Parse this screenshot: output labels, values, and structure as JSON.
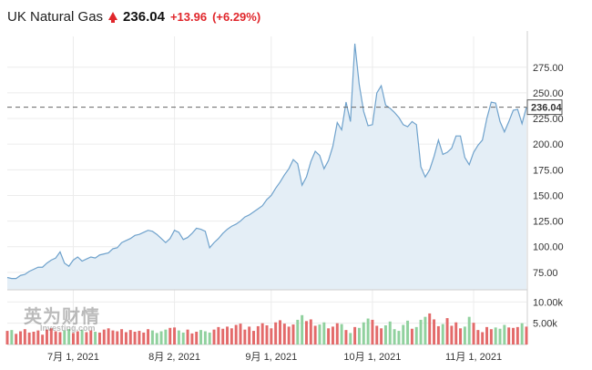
{
  "header": {
    "title": "UK Natural Gas",
    "price": "236.04",
    "change": "+13.96",
    "change_pct": "(+6.29%)",
    "up_color": "#e0262b"
  },
  "watermark": {
    "cn": "英为财情",
    "en": "Investing.com"
  },
  "chart_data": {
    "type": "area",
    "last_price_label": "236.04",
    "last_price": 236.04,
    "y_ticks": [
      "275.00",
      "250.00",
      "225.00",
      "200.00",
      "175.00",
      "150.00",
      "125.00",
      "100.00",
      "75.00"
    ],
    "y_tick_values": [
      275,
      250,
      225,
      200,
      175,
      150,
      125,
      100,
      75
    ],
    "ylim": [
      58,
      305
    ],
    "x_ticks": [
      {
        "label": "7月 1, 2021",
        "index": 15
      },
      {
        "label": "8月 2, 2021",
        "index": 38
      },
      {
        "label": "9月 1, 2021",
        "index": 60
      },
      {
        "label": "10月 1, 2021",
        "index": 83
      },
      {
        "label": "11月 1, 2021",
        "index": 106
      }
    ],
    "price": [
      70,
      69,
      69,
      72,
      73,
      76,
      78,
      80,
      80,
      84,
      87,
      89,
      95,
      84,
      81,
      87,
      90,
      86,
      88,
      90,
      89,
      92,
      93,
      94,
      98,
      99,
      104,
      106,
      108,
      111,
      112,
      114,
      116,
      115,
      112,
      108,
      104,
      108,
      116,
      114,
      107,
      109,
      113,
      118,
      117,
      115,
      99,
      104,
      108,
      113,
      117,
      120,
      122,
      125,
      129,
      131,
      134,
      137,
      140,
      146,
      150,
      157,
      163,
      170,
      176,
      185,
      181,
      160,
      168,
      183,
      193,
      189,
      176,
      184,
      198,
      221,
      214,
      241,
      222,
      298,
      258,
      232,
      218,
      219,
      250,
      257,
      238,
      235,
      231,
      226,
      219,
      217,
      222,
      219,
      178,
      168,
      175,
      188,
      204,
      190,
      192,
      196,
      208,
      208,
      187,
      180,
      192,
      199,
      204,
      225,
      241,
      240,
      222,
      212,
      222,
      233,
      234,
      220,
      236
    ],
    "volume_ylim": [
      0,
      12000
    ],
    "volume_ticks": [
      "10.00k",
      "5.00k"
    ],
    "volume_tick_values": [
      10000,
      5000
    ],
    "volume": [
      3200,
      3400,
      2500,
      3100,
      3600,
      2800,
      3000,
      3300,
      2300,
      3500,
      3800,
      3100,
      2900,
      3300,
      3600,
      2700,
      3100,
      3400,
      2900,
      3300,
      3000,
      2800,
      3500,
      3800,
      3300,
      3100,
      3600,
      2900,
      3400,
      3000,
      3200,
      2800,
      3600,
      3300,
      2700,
      3100,
      3500,
      3900,
      4000,
      3300,
      2800,
      3500,
      2600,
      3000,
      3400,
      3100,
      2800,
      3500,
      4100,
      3700,
      4200,
      3800,
      4600,
      4900,
      3500,
      4200,
      3200,
      4300,
      5000,
      4500,
      3800,
      5200,
      5700,
      4900,
      4200,
      4700,
      5800,
      6900,
      5500,
      5900,
      4400,
      4700,
      5200,
      3800,
      4200,
      5000,
      4800,
      3400,
      2700,
      4100,
      3900,
      5200,
      6100,
      5800,
      4400,
      3800,
      4500,
      5400,
      3600,
      3200,
      4600,
      5600,
      3700,
      4100,
      5800,
      6500,
      7300,
      5900,
      4300,
      4800,
      6200,
      4400,
      5200,
      3800,
      4200,
      6500,
      5100,
      3400,
      2900,
      4100,
      3600,
      4000,
      3700,
      4600,
      4000,
      3900,
      4100,
      5000,
      4200
    ],
    "volume_up_color": "#e36a6a",
    "volume_down_color": "#90d19e",
    "line_color": "#6fa2cc",
    "fill_color": "#e4eef6"
  }
}
